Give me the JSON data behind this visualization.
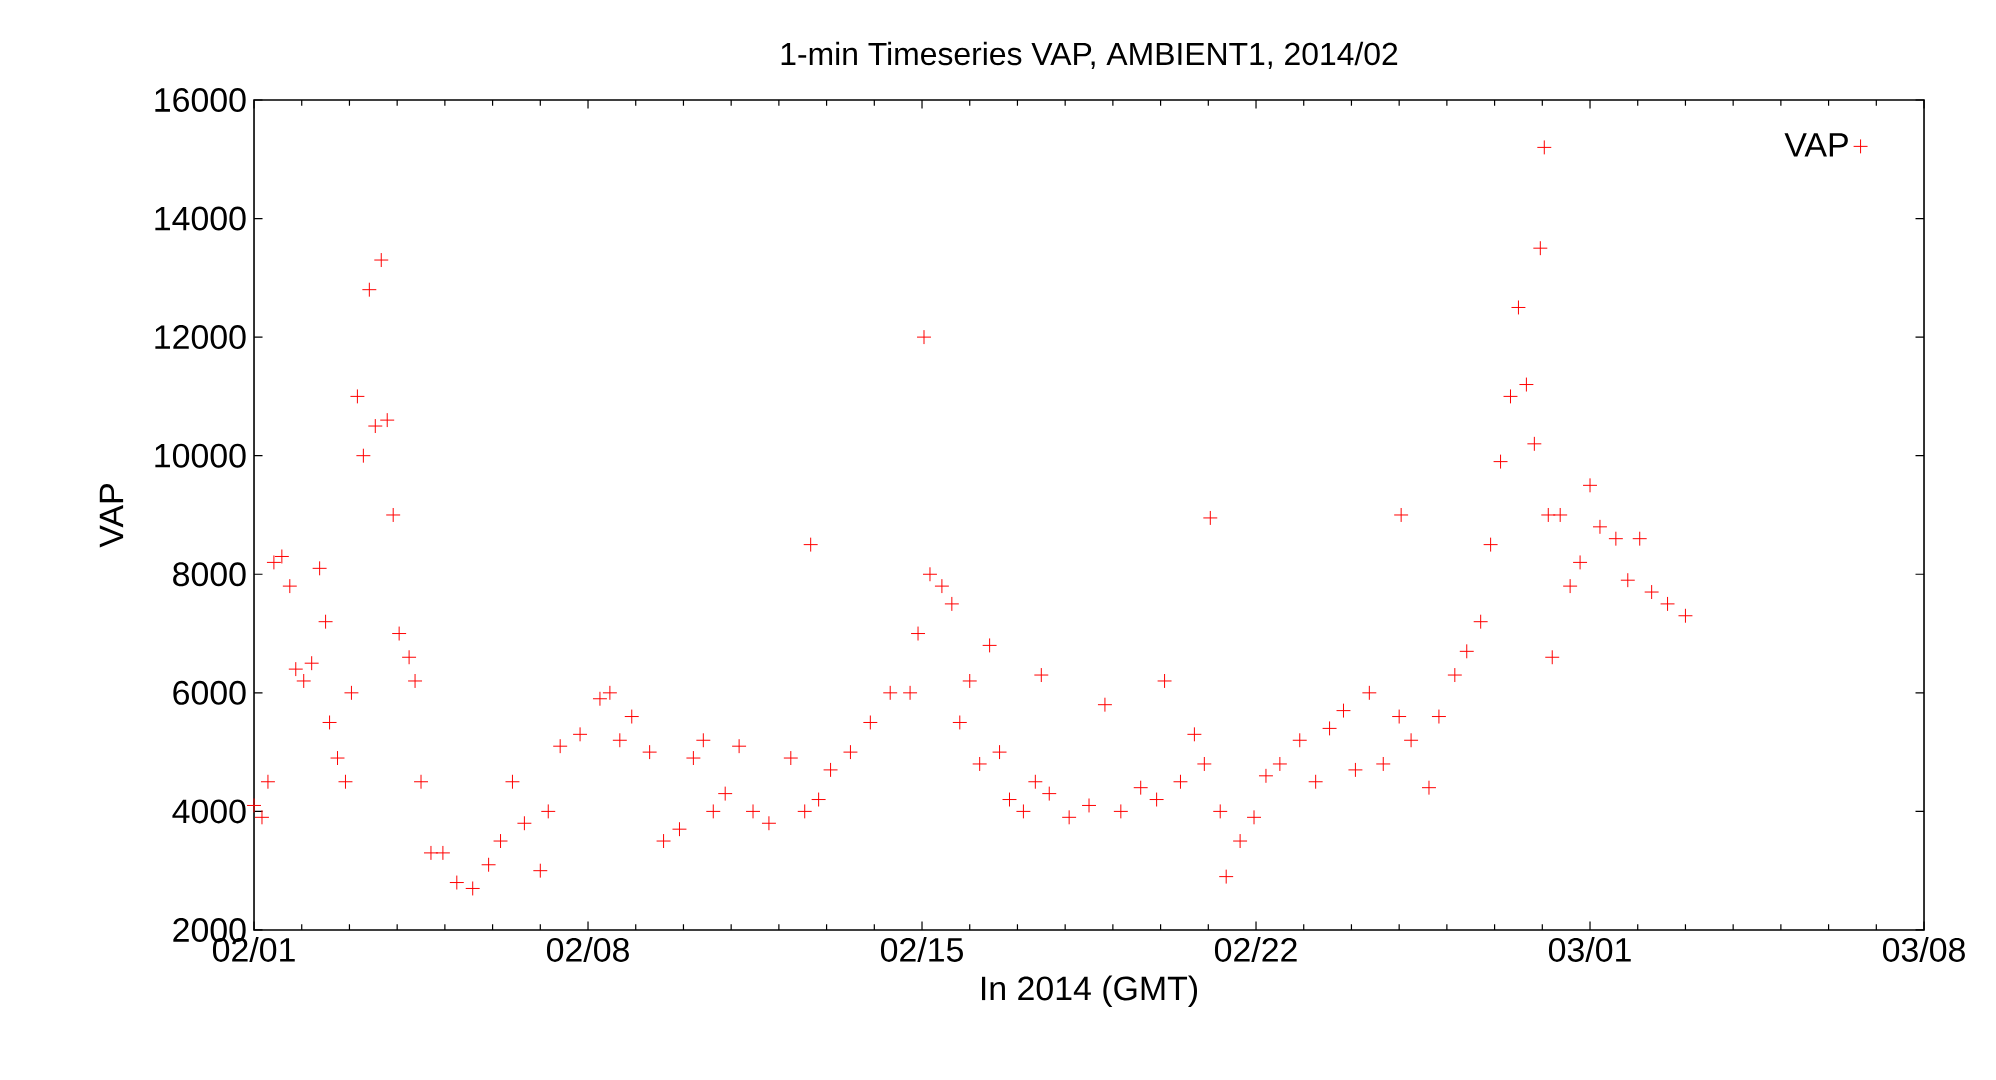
{
  "chart_data": {
    "type": "scatter",
    "title": "1-min Timeseries VAP, AMBIENT1, 2014/02",
    "xlabel": "In 2014 (GMT)",
    "ylabel": "VAP",
    "xlim": [
      "2014-02-01",
      "2014-03-08"
    ],
    "xticks": [
      {
        "value": "2014-02-01",
        "label": "02/01"
      },
      {
        "value": "2014-02-08",
        "label": "02/08"
      },
      {
        "value": "2014-02-15",
        "label": "02/15"
      },
      {
        "value": "2014-02-22",
        "label": "02/22"
      },
      {
        "value": "2014-03-01",
        "label": "03/01"
      },
      {
        "value": "2014-03-08",
        "label": "03/08"
      }
    ],
    "ylim": [
      2000,
      16000
    ],
    "yticks": [
      2000,
      4000,
      6000,
      8000,
      10000,
      12000,
      14000,
      16000
    ],
    "legend": "top right",
    "marker": "cross",
    "grid": false,
    "series": [
      {
        "name": "VAP",
        "color": "#ff0000",
        "x": [
          "2014-02-01T00:00",
          "2014-02-01T04:00",
          "2014-02-01T07:00",
          "2014-02-01T10:00",
          "2014-02-01T14:00",
          "2014-02-01T18:00",
          "2014-02-01T21:00",
          "2014-02-02T01:00",
          "2014-02-02T05:00",
          "2014-02-02T09:00",
          "2014-02-02T12:00",
          "2014-02-02T14:00",
          "2014-02-02T18:00",
          "2014-02-02T22:00",
          "2014-02-03T01:00",
          "2014-02-03T04:00",
          "2014-02-03T07:00",
          "2014-02-03T10:00",
          "2014-02-03T13:00",
          "2014-02-03T16:00",
          "2014-02-03T19:00",
          "2014-02-03T22:00",
          "2014-02-04T01:00",
          "2014-02-04T06:00",
          "2014-02-04T09:00",
          "2014-02-04T12:00",
          "2014-02-04T17:00",
          "2014-02-04T23:00",
          "2014-02-05T06:00",
          "2014-02-05T14:00",
          "2014-02-05T22:00",
          "2014-02-06T04:00",
          "2014-02-06T10:00",
          "2014-02-06T16:00",
          "2014-02-07T00:00",
          "2014-02-07T04:00",
          "2014-02-07T10:00",
          "2014-02-07T20:00",
          "2014-02-08T06:00",
          "2014-02-08T11:00",
          "2014-02-08T16:00",
          "2014-02-08T22:00",
          "2014-02-09T07:00",
          "2014-02-09T14:00",
          "2014-02-09T22:00",
          "2014-02-10T05:00",
          "2014-02-10T10:00",
          "2014-02-10T15:00",
          "2014-02-10T21:00",
          "2014-02-11T04:00",
          "2014-02-11T11:00",
          "2014-02-11T19:00",
          "2014-02-12T06:00",
          "2014-02-12T13:00",
          "2014-02-12T16:00",
          "2014-02-12T20:00",
          "2014-02-13T02:00",
          "2014-02-13T12:00",
          "2014-02-13T22:00",
          "2014-02-14T08:00",
          "2014-02-14T18:00",
          "2014-02-14T22:00",
          "2014-02-15T01:00",
          "2014-02-15T04:00",
          "2014-02-15T10:00",
          "2014-02-15T15:00",
          "2014-02-15T19:00",
          "2014-02-16T00:00",
          "2014-02-16T05:00",
          "2014-02-16T10:00",
          "2014-02-16T15:00",
          "2014-02-16T20:00",
          "2014-02-17T03:00",
          "2014-02-17T09:00",
          "2014-02-17T12:00",
          "2014-02-17T16:00",
          "2014-02-18T02:00",
          "2014-02-18T12:00",
          "2014-02-18T20:00",
          "2014-02-19T04:00",
          "2014-02-19T14:00",
          "2014-02-19T22:00",
          "2014-02-20T02:00",
          "2014-02-20T10:00",
          "2014-02-20T17:00",
          "2014-02-20T22:00",
          "2014-02-21T01:00",
          "2014-02-21T06:00",
          "2014-02-21T09:00",
          "2014-02-21T16:00",
          "2014-02-21T23:00",
          "2014-02-22T05:00",
          "2014-02-22T12:00",
          "2014-02-22T22:00",
          "2014-02-23T06:00",
          "2014-02-23T13:00",
          "2014-02-23T20:00",
          "2014-02-24T02:00",
          "2014-02-24T09:00",
          "2014-02-24T16:00",
          "2014-02-25T00:00",
          "2014-02-25T01:00",
          "2014-02-25T06:00",
          "2014-02-25T15:00",
          "2014-02-25T20:00",
          "2014-02-26T04:00",
          "2014-02-26T10:00",
          "2014-02-26T17:00",
          "2014-02-26T22:00",
          "2014-02-27T03:00",
          "2014-02-27T08:00",
          "2014-02-27T12:00",
          "2014-02-27T16:00",
          "2014-02-27T20:00",
          "2014-02-27T23:00",
          "2014-02-28T01:00",
          "2014-02-28T03:00",
          "2014-02-28T05:00",
          "2014-02-28T09:00",
          "2014-02-28T14:00",
          "2014-02-28T19:00",
          "2014-03-01T00:00",
          "2014-03-01T05:00",
          "2014-03-01T13:00",
          "2014-03-01T19:00",
          "2014-03-02T01:00",
          "2014-03-02T07:00",
          "2014-03-02T15:00",
          "2014-03-03T00:00"
        ],
        "values": [
          4100,
          3900,
          4500,
          8200,
          8300,
          7800,
          6400,
          6200,
          6500,
          8100,
          7200,
          5500,
          4900,
          4500,
          6000,
          11000,
          10000,
          12800,
          10500,
          13300,
          10600,
          9000,
          7000,
          6600,
          6200,
          4500,
          3300,
          3300,
          2800,
          2700,
          3100,
          3500,
          4500,
          3800,
          3000,
          4000,
          5100,
          5300,
          5900,
          6000,
          5200,
          5600,
          5000,
          3500,
          3700,
          4900,
          5200,
          4000,
          4300,
          5100,
          4000,
          3800,
          4900,
          4000,
          8500,
          4200,
          4700,
          5000,
          5500,
          6000,
          6000,
          7000,
          12000,
          8000,
          7800,
          7500,
          5500,
          6200,
          4800,
          6800,
          5000,
          4200,
          4000,
          4500,
          6300,
          4300,
          3900,
          4100,
          5800,
          4000,
          4400,
          4200,
          6200,
          4500,
          5300,
          4800,
          8950,
          4000,
          2900,
          3500,
          3900,
          4600,
          4800,
          5200,
          4500,
          5400,
          5700,
          4700,
          6000,
          4800,
          5600,
          9000,
          5200,
          4400,
          5600,
          6300,
          6700,
          7200,
          8500,
          9900,
          11000,
          12500,
          11200,
          10200,
          13500,
          15200,
          9000,
          6600,
          9000,
          7800,
          8200,
          9500,
          8800,
          8600,
          7900,
          8600,
          7700,
          7500,
          7300
        ]
      }
    ]
  }
}
